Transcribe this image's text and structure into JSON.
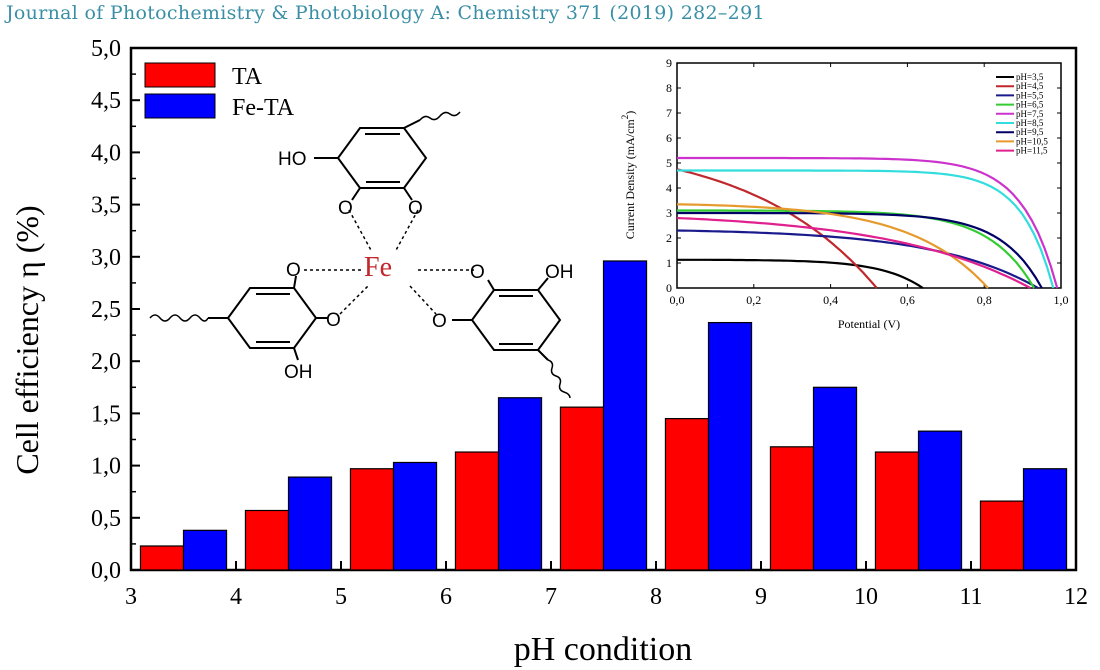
{
  "header": {
    "journal": "Journal of Photochemistry & Photobiology A: Chemistry 371 (2019) 282–291"
  },
  "chart_data": [
    {
      "type": "bar",
      "xlabel": "pH condition",
      "ylabel": "Cell efficiency η (%)",
      "xlim": [
        3,
        12
      ],
      "ylim": [
        0,
        5
      ],
      "x_ticks": [
        "3",
        "4",
        "5",
        "6",
        "7",
        "8",
        "9",
        "10",
        "11",
        "12"
      ],
      "y_ticks": [
        "0,0",
        "0,5",
        "1,0",
        "1,5",
        "2,0",
        "2,5",
        "3,0",
        "3,5",
        "4,0",
        "4,5",
        "5,0"
      ],
      "categories": [
        "3,5",
        "4,5",
        "5,5",
        "6,5",
        "7,5",
        "8,5",
        "9,5",
        "10,5",
        "11,5"
      ],
      "series": [
        {
          "name": "TA",
          "color": "#ff0000",
          "values": [
            0.23,
            0.57,
            0.97,
            1.13,
            1.56,
            1.45,
            1.18,
            1.13,
            0.66
          ]
        },
        {
          "name": "Fe-TA",
          "color": "#0000ff",
          "values": [
            0.38,
            0.89,
            1.03,
            1.65,
            2.96,
            2.37,
            1.75,
            1.33,
            0.97
          ]
        }
      ],
      "legend": "top-left",
      "annotation": {
        "type": "chemical-structure",
        "labels": {
          "metal": "Fe",
          "ho": "HO",
          "oh1": "OH",
          "oh2": "OH",
          "o": "O"
        }
      }
    },
    {
      "type": "line",
      "xlabel": "Potential (V)",
      "ylabel": "Current Density (mA/cm",
      "ylabel_sup": "2",
      "ylabel_close": ")",
      "xlim": [
        0,
        1.0
      ],
      "ylim": [
        0,
        9
      ],
      "x_ticks": [
        "0,0",
        "0,2",
        "0,4",
        "0,6",
        "0,8",
        "1,0"
      ],
      "y_ticks": [
        "0",
        "1",
        "2",
        "3",
        "4",
        "5",
        "6",
        "7",
        "8",
        "9"
      ],
      "legend": "top-right",
      "series": [
        {
          "name": "pH=3,5",
          "color": "#000000",
          "isc": 1.13,
          "voc": 0.64,
          "ff_k": 6
        },
        {
          "name": "pH=4,5",
          "color": "#c0282d",
          "isc": 4.75,
          "voc": 0.52,
          "ff_k": 1.6
        },
        {
          "name": "pH=5,5",
          "color": "#1a1a8c",
          "isc": 2.3,
          "voc": 0.94,
          "ff_k": 3.5
        },
        {
          "name": "pH=6,5",
          "color": "#33cc33",
          "isc": 3.1,
          "voc": 0.93,
          "ff_k": 8
        },
        {
          "name": "pH=7,5",
          "color": "#cc33cc",
          "isc": 5.2,
          "voc": 0.99,
          "ff_k": 11
        },
        {
          "name": "pH=8,5",
          "color": "#33dddd",
          "isc": 4.7,
          "voc": 0.98,
          "ff_k": 12
        },
        {
          "name": "pH=9,5",
          "color": "#000066",
          "isc": 3.0,
          "voc": 0.95,
          "ff_k": 9
        },
        {
          "name": "pH=10,5",
          "color": "#e69a2e",
          "isc": 3.35,
          "voc": 0.81,
          "ff_k": 4
        },
        {
          "name": "pH=11,5",
          "color": "#e0208f",
          "isc": 2.8,
          "voc": 0.92,
          "ff_k": 2.5
        }
      ]
    }
  ]
}
